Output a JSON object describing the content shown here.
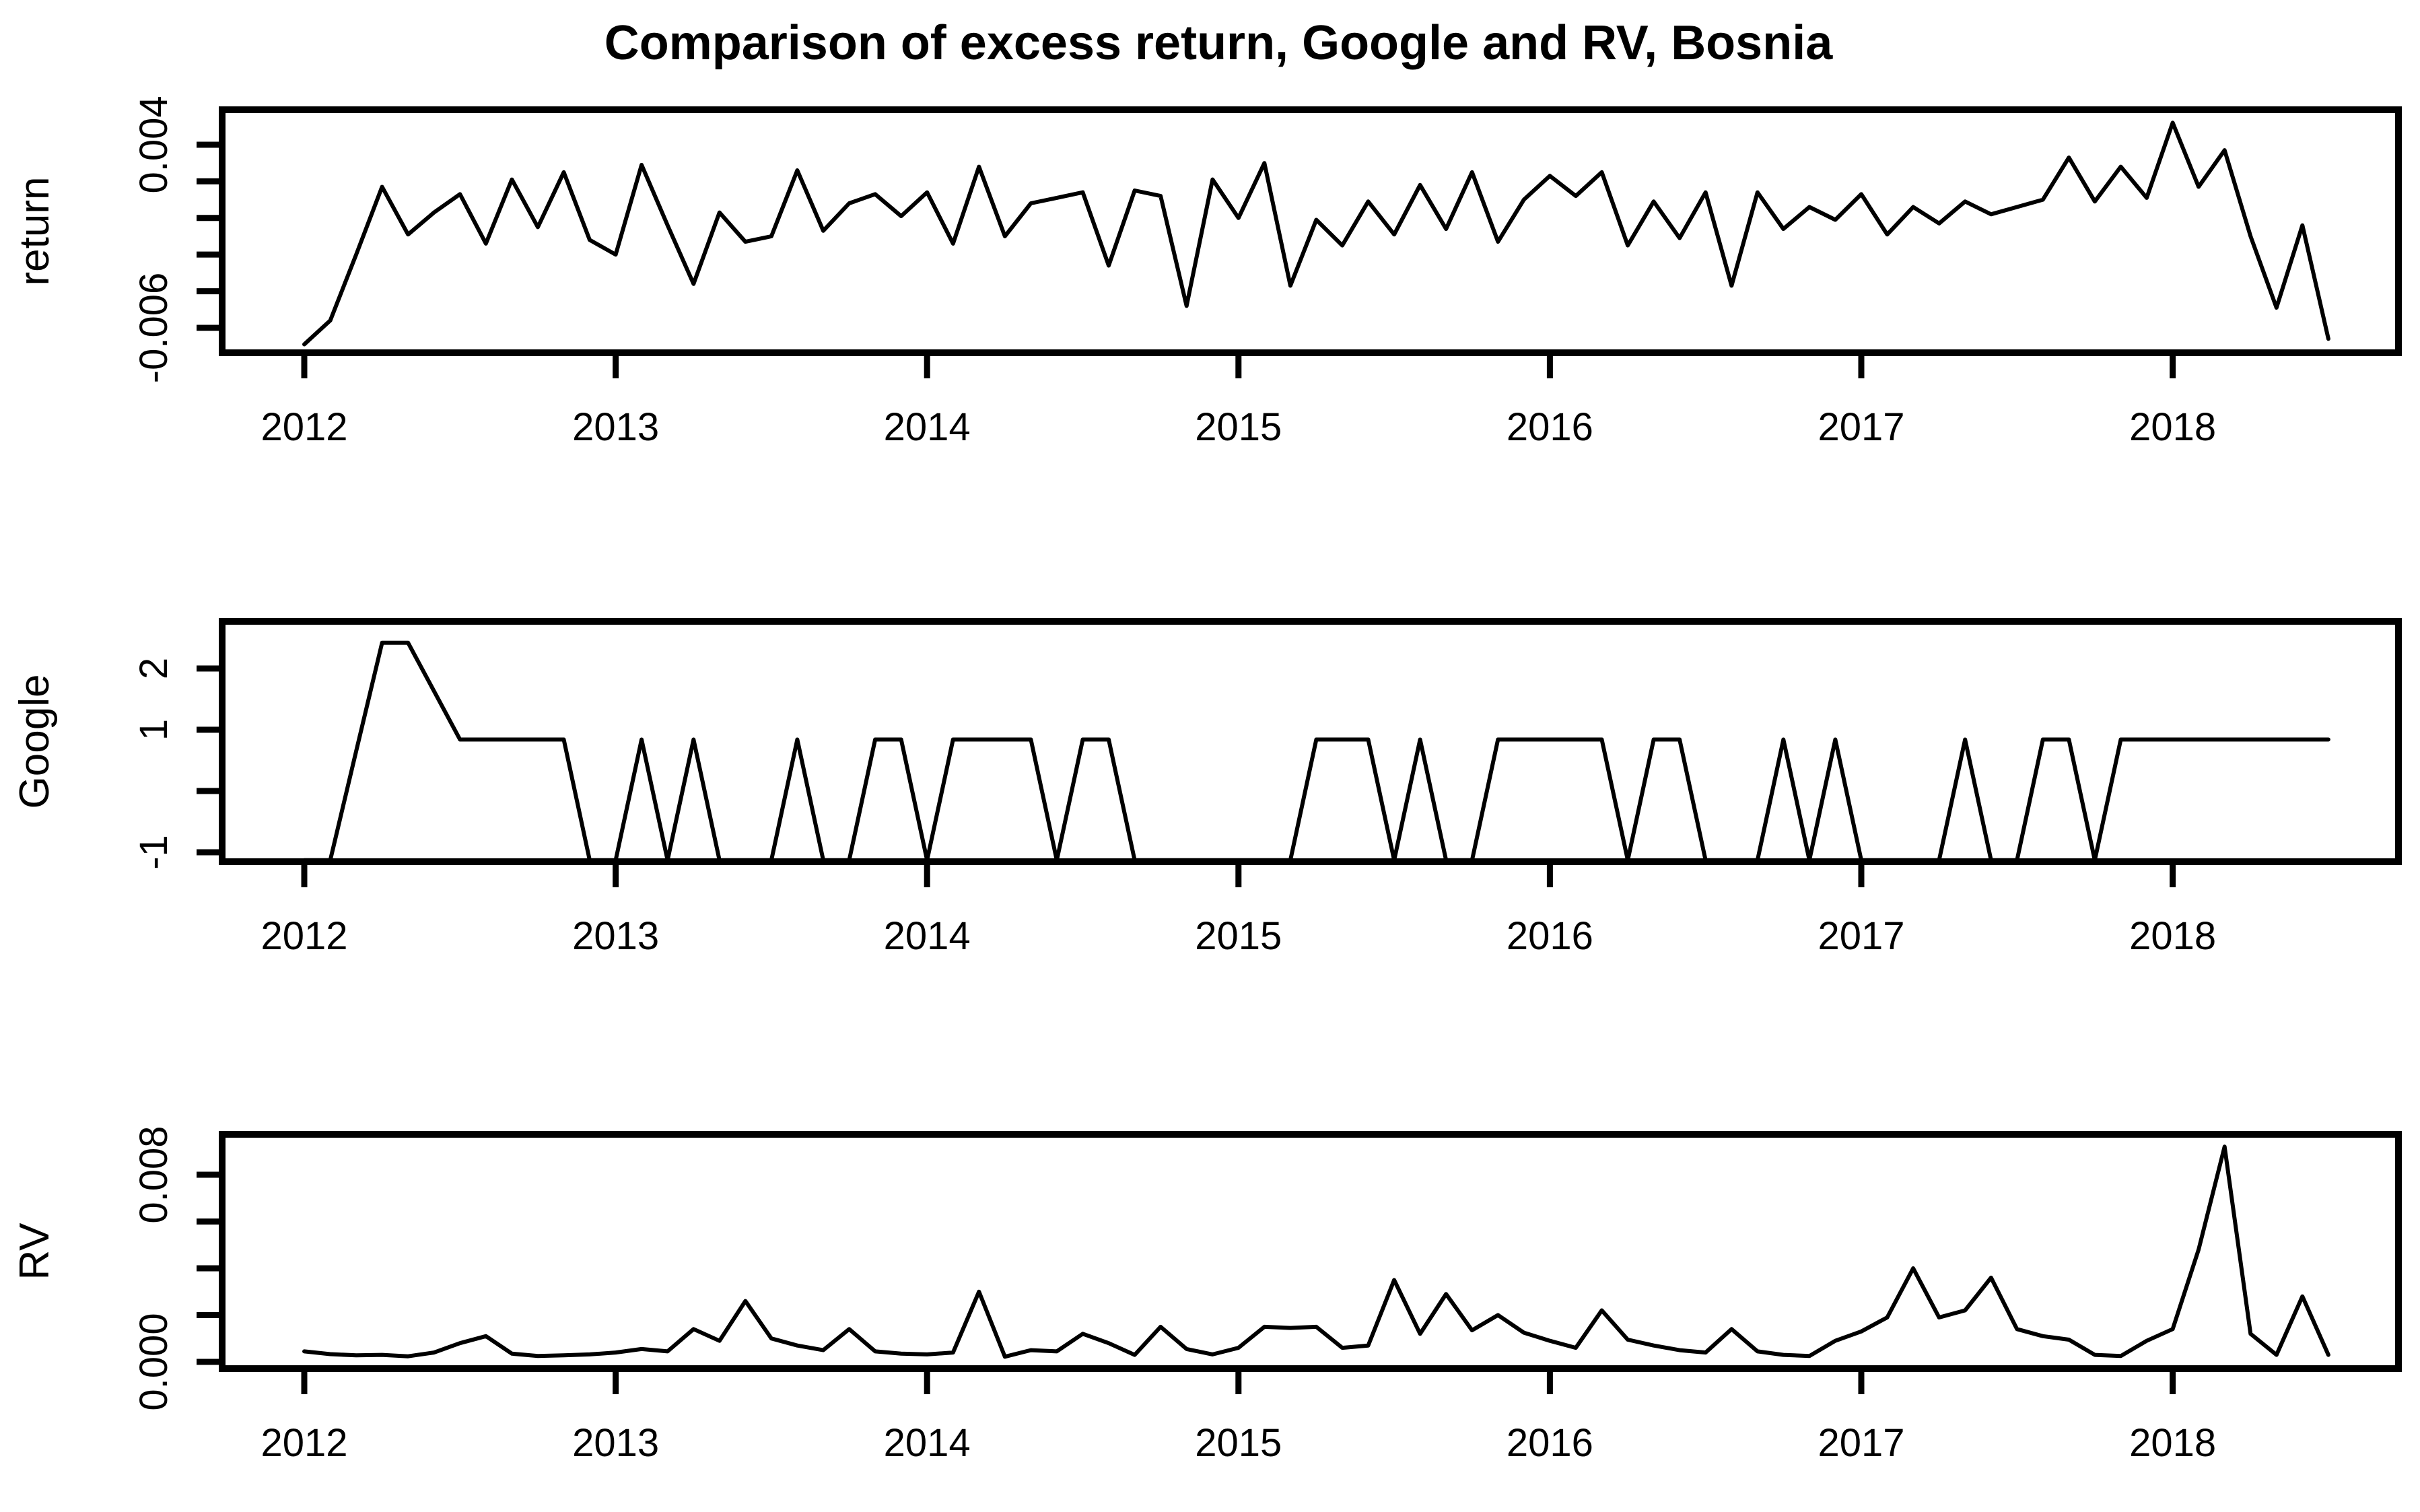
{
  "title": "Comparison of excess return, Google and RV, Bosnia",
  "colors": {
    "line": "#000000",
    "background": "#ffffff"
  },
  "x_tick_labels": [
    "2012",
    "2013",
    "2014",
    "2015",
    "2016",
    "2017",
    "2018"
  ],
  "x_months": [
    "2012-01",
    "2012-02",
    "2012-03",
    "2012-04",
    "2012-05",
    "2012-06",
    "2012-07",
    "2012-08",
    "2012-09",
    "2012-10",
    "2012-11",
    "2012-12",
    "2013-01",
    "2013-02",
    "2013-03",
    "2013-04",
    "2013-05",
    "2013-06",
    "2013-07",
    "2013-08",
    "2013-09",
    "2013-10",
    "2013-11",
    "2013-12",
    "2014-01",
    "2014-02",
    "2014-03",
    "2014-04",
    "2014-05",
    "2014-06",
    "2014-07",
    "2014-08",
    "2014-09",
    "2014-10",
    "2014-11",
    "2014-12",
    "2015-01",
    "2015-02",
    "2015-03",
    "2015-04",
    "2015-05",
    "2015-06",
    "2015-07",
    "2015-08",
    "2015-09",
    "2015-10",
    "2015-11",
    "2015-12",
    "2016-01",
    "2016-02",
    "2016-03",
    "2016-04",
    "2016-05",
    "2016-06",
    "2016-07",
    "2016-08",
    "2016-09",
    "2016-10",
    "2016-11",
    "2016-12",
    "2017-01",
    "2017-02",
    "2017-03",
    "2017-04",
    "2017-05",
    "2017-06",
    "2017-07",
    "2017-08",
    "2017-09",
    "2017-10",
    "2017-11",
    "2017-12",
    "2018-01",
    "2018-02",
    "2018-03",
    "2018-04",
    "2018-05",
    "2018-06",
    "2018-07"
  ],
  "chart_data": [
    {
      "type": "line",
      "name": "return",
      "ylabel": "return",
      "ylim": [
        -0.00736,
        0.00591
      ],
      "xticks": [
        2012,
        2013,
        2014,
        2015,
        2016,
        2017,
        2018
      ],
      "yticks": [
        {
          "value": 0.004,
          "label": "0.004"
        },
        {
          "value": 0.002,
          "label": ""
        },
        {
          "value": 0.0,
          "label": ""
        },
        {
          "value": -0.002,
          "label": ""
        },
        {
          "value": -0.004,
          "label": ""
        },
        {
          "value": -0.006,
          "label": "-0.006"
        }
      ],
      "values": [
        -0.0069,
        -0.0056,
        -0.002,
        0.0017,
        -0.0009,
        0.0003,
        0.0013,
        -0.0014,
        0.0021,
        -0.0005,
        0.0025,
        -0.0012,
        -0.002,
        0.0029,
        -0.0004,
        -0.0036,
        0.0003,
        -0.0013,
        -0.001,
        0.0026,
        -0.0007,
        0.0008,
        0.0013,
        0.0001,
        0.0014,
        -0.0014,
        0.0028,
        -0.001,
        0.0008,
        0.0011,
        0.0014,
        -0.0026,
        0.0015,
        0.0012,
        -0.0048,
        0.0021,
        0.0,
        0.003,
        -0.0037,
        -0.0001,
        -0.0015,
        0.0009,
        -0.0009,
        0.0018,
        -0.0006,
        0.0025,
        -0.0013,
        0.001,
        0.0023,
        0.0012,
        0.0025,
        -0.0015,
        0.0009,
        -0.0011,
        0.0014,
        -0.0037,
        0.0014,
        -0.0006,
        0.0006,
        -0.0001,
        0.0013,
        -0.0009,
        0.0006,
        -0.0003,
        0.0009,
        0.0002,
        0.0006,
        0.001,
        0.0033,
        0.0009,
        0.0028,
        0.0011,
        0.0052,
        0.0017,
        0.0037,
        -0.001,
        -0.0049,
        -0.0004,
        -0.0066
      ]
    },
    {
      "type": "line",
      "name": "google",
      "ylabel": "Google",
      "ylim": [
        -1.154,
        2.769
      ],
      "xticks": [
        2012,
        2013,
        2014,
        2015,
        2016,
        2017,
        2018
      ],
      "yticks": [
        {
          "value": 2,
          "label": "2"
        },
        {
          "value": 1,
          "label": "1"
        },
        {
          "value": 0,
          "label": ""
        },
        {
          "value": -1,
          "label": "-1"
        }
      ],
      "values": [
        -1.13,
        -1.13,
        0.65,
        2.42,
        2.42,
        1.63,
        0.84,
        0.84,
        0.84,
        0.84,
        0.84,
        -1.13,
        -1.13,
        0.84,
        -1.13,
        0.84,
        -1.13,
        -1.13,
        -1.13,
        0.84,
        -1.13,
        -1.13,
        0.84,
        0.84,
        -1.13,
        0.84,
        0.84,
        0.84,
        0.84,
        -1.13,
        0.84,
        0.84,
        -1.13,
        -1.13,
        -1.13,
        -1.13,
        -1.13,
        -1.13,
        -1.13,
        0.84,
        0.84,
        0.84,
        -1.13,
        0.84,
        -1.13,
        -1.13,
        0.84,
        0.84,
        0.84,
        0.84,
        0.84,
        -1.13,
        0.84,
        0.84,
        -1.13,
        -1.13,
        -1.13,
        0.84,
        -1.13,
        0.84,
        -1.13,
        -1.13,
        -1.13,
        -1.13,
        0.84,
        -1.13,
        -1.13,
        0.84,
        0.84,
        -1.13,
        0.84,
        0.84,
        0.84,
        0.84,
        0.84,
        0.84,
        0.84,
        0.84,
        0.84
      ]
    },
    {
      "type": "line",
      "name": "rv",
      "ylabel": "RV",
      "ylim": [
        -0.000288,
        0.009727
      ],
      "xticks": [
        2012,
        2013,
        2014,
        2015,
        2016,
        2017,
        2018
      ],
      "yticks": [
        {
          "value": 0.008,
          "label": "0.008"
        },
        {
          "value": 0.006,
          "label": ""
        },
        {
          "value": 0.004,
          "label": ""
        },
        {
          "value": 0.002,
          "label": ""
        },
        {
          "value": 0.0,
          "label": "0.000"
        }
      ],
      "values": [
        0.00045,
        0.00033,
        0.00028,
        0.0003,
        0.00024,
        0.0004,
        0.0008,
        0.0011,
        0.00035,
        0.00025,
        0.00028,
        0.00032,
        0.0004,
        0.00055,
        0.00045,
        0.0014,
        0.0009,
        0.0026,
        0.001,
        0.0007,
        0.0005,
        0.0014,
        0.00045,
        0.00035,
        0.00032,
        0.0004,
        0.003,
        0.00022,
        0.0005,
        0.00045,
        0.0012,
        0.0008,
        0.0003,
        0.0015,
        0.00055,
        0.00032,
        0.0006,
        0.0015,
        0.00145,
        0.0015,
        0.0006,
        0.0007,
        0.0035,
        0.0012,
        0.0029,
        0.00135,
        0.002,
        0.00125,
        0.0009,
        0.0006,
        0.0022,
        0.00095,
        0.0007,
        0.0005,
        0.0004,
        0.0014,
        0.00045,
        0.0003,
        0.00025,
        0.0009,
        0.0013,
        0.0019,
        0.004,
        0.0019,
        0.0022,
        0.0036,
        0.0014,
        0.0011,
        0.00095,
        0.0003,
        0.00025,
        0.0009,
        0.0014,
        0.0048,
        0.0092,
        0.0012,
        0.0003,
        0.0028,
        0.0003
      ]
    }
  ]
}
